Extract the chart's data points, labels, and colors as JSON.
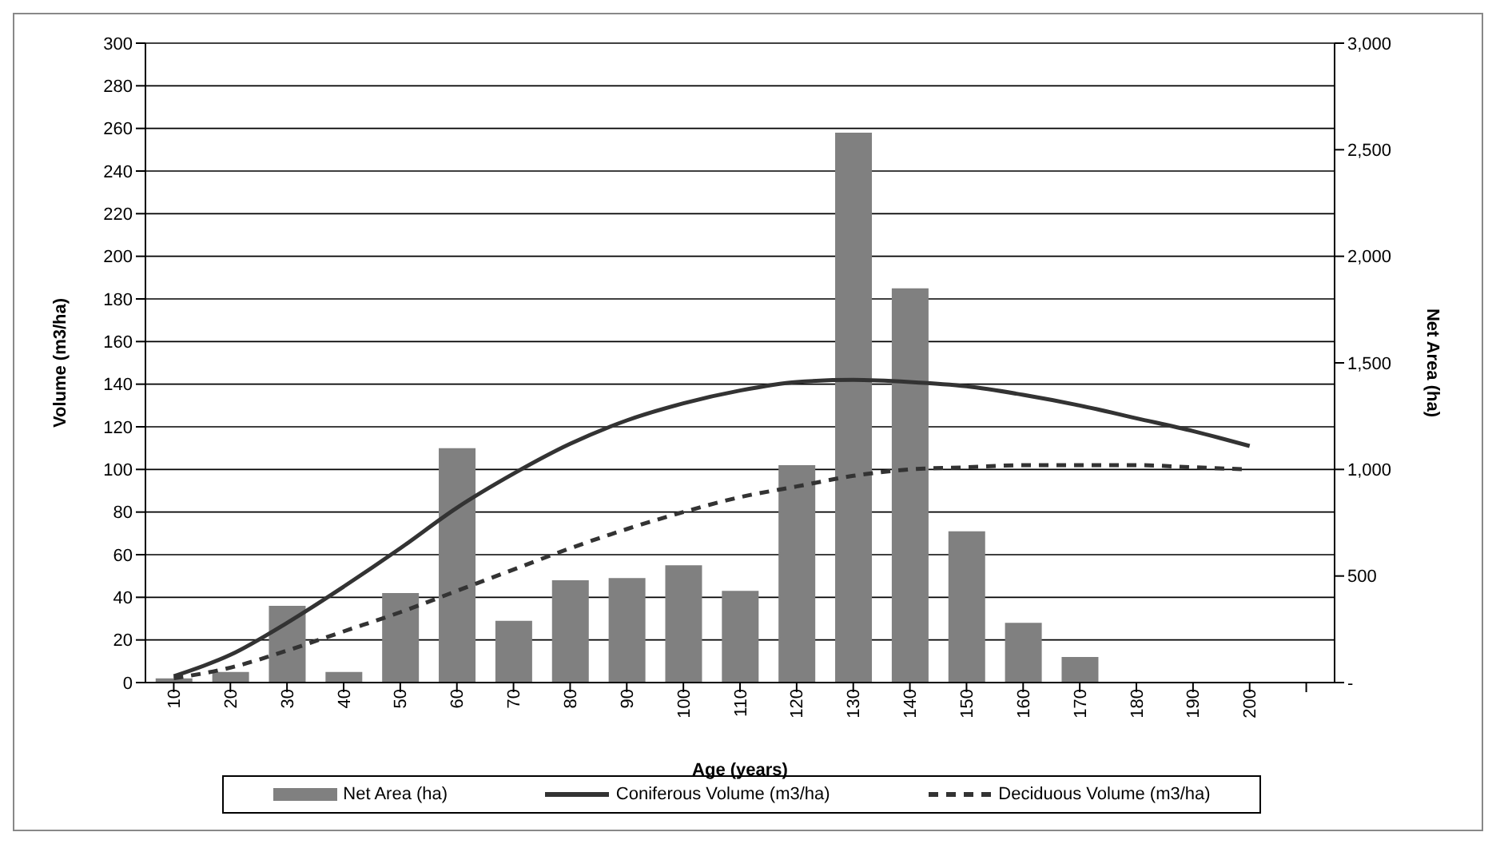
{
  "chart_data": {
    "type": "bar",
    "xlabel": "Age (years)",
    "ylabel": "Volume (m3/ha)",
    "y2label": "Net Area (ha)",
    "categories": [
      "10",
      "20",
      "30",
      "40",
      "50",
      "60",
      "70",
      "80",
      "90",
      "100",
      "110",
      "120",
      "130",
      "140",
      "150",
      "160",
      "170",
      "180",
      "190",
      "200",
      null
    ],
    "series": [
      {
        "name": "Net Area (ha)",
        "axis": "y2",
        "color": "#808080",
        "values": [
          20,
          50,
          360,
          50,
          420,
          1100,
          290,
          480,
          490,
          550,
          430,
          1020,
          2580,
          1850,
          710,
          280,
          120,
          0,
          0,
          0,
          null
        ]
      },
      {
        "name": "Coniferous Volume (m3/ha)",
        "type": "line",
        "color": "#333333",
        "line_style": "solid",
        "values": [
          3,
          13,
          28,
          45,
          63,
          82,
          98,
          112,
          123,
          131,
          137,
          141,
          142,
          141,
          139,
          135,
          130,
          124,
          118,
          111,
          null
        ]
      },
      {
        "name": "Deciduous Volume (m3/ha)",
        "type": "line",
        "color": "#333333",
        "line_style": "dashed",
        "values": [
          2,
          7,
          15,
          24,
          33,
          43,
          53,
          63,
          72,
          80,
          87,
          92,
          97,
          100,
          101,
          102,
          102,
          102,
          101,
          100,
          null
        ]
      }
    ],
    "ylim": [
      0,
      300
    ],
    "yticks": [
      0,
      20,
      40,
      60,
      80,
      100,
      120,
      140,
      160,
      180,
      200,
      220,
      240,
      260,
      280,
      300
    ],
    "y2lim": [
      0,
      3000
    ],
    "y2ticks": [
      {
        "value": 0,
        "label": "-"
      },
      {
        "value": 500,
        "label": "500"
      },
      {
        "value": 1000,
        "label": "1,000"
      },
      {
        "value": 1500,
        "label": "1,500"
      },
      {
        "value": 2000,
        "label": "2,000"
      },
      {
        "value": 2500,
        "label": "2,500"
      },
      {
        "value": 3000,
        "label": "3,000"
      }
    ],
    "grid": "y",
    "legend": "bottom",
    "marker": "none"
  }
}
